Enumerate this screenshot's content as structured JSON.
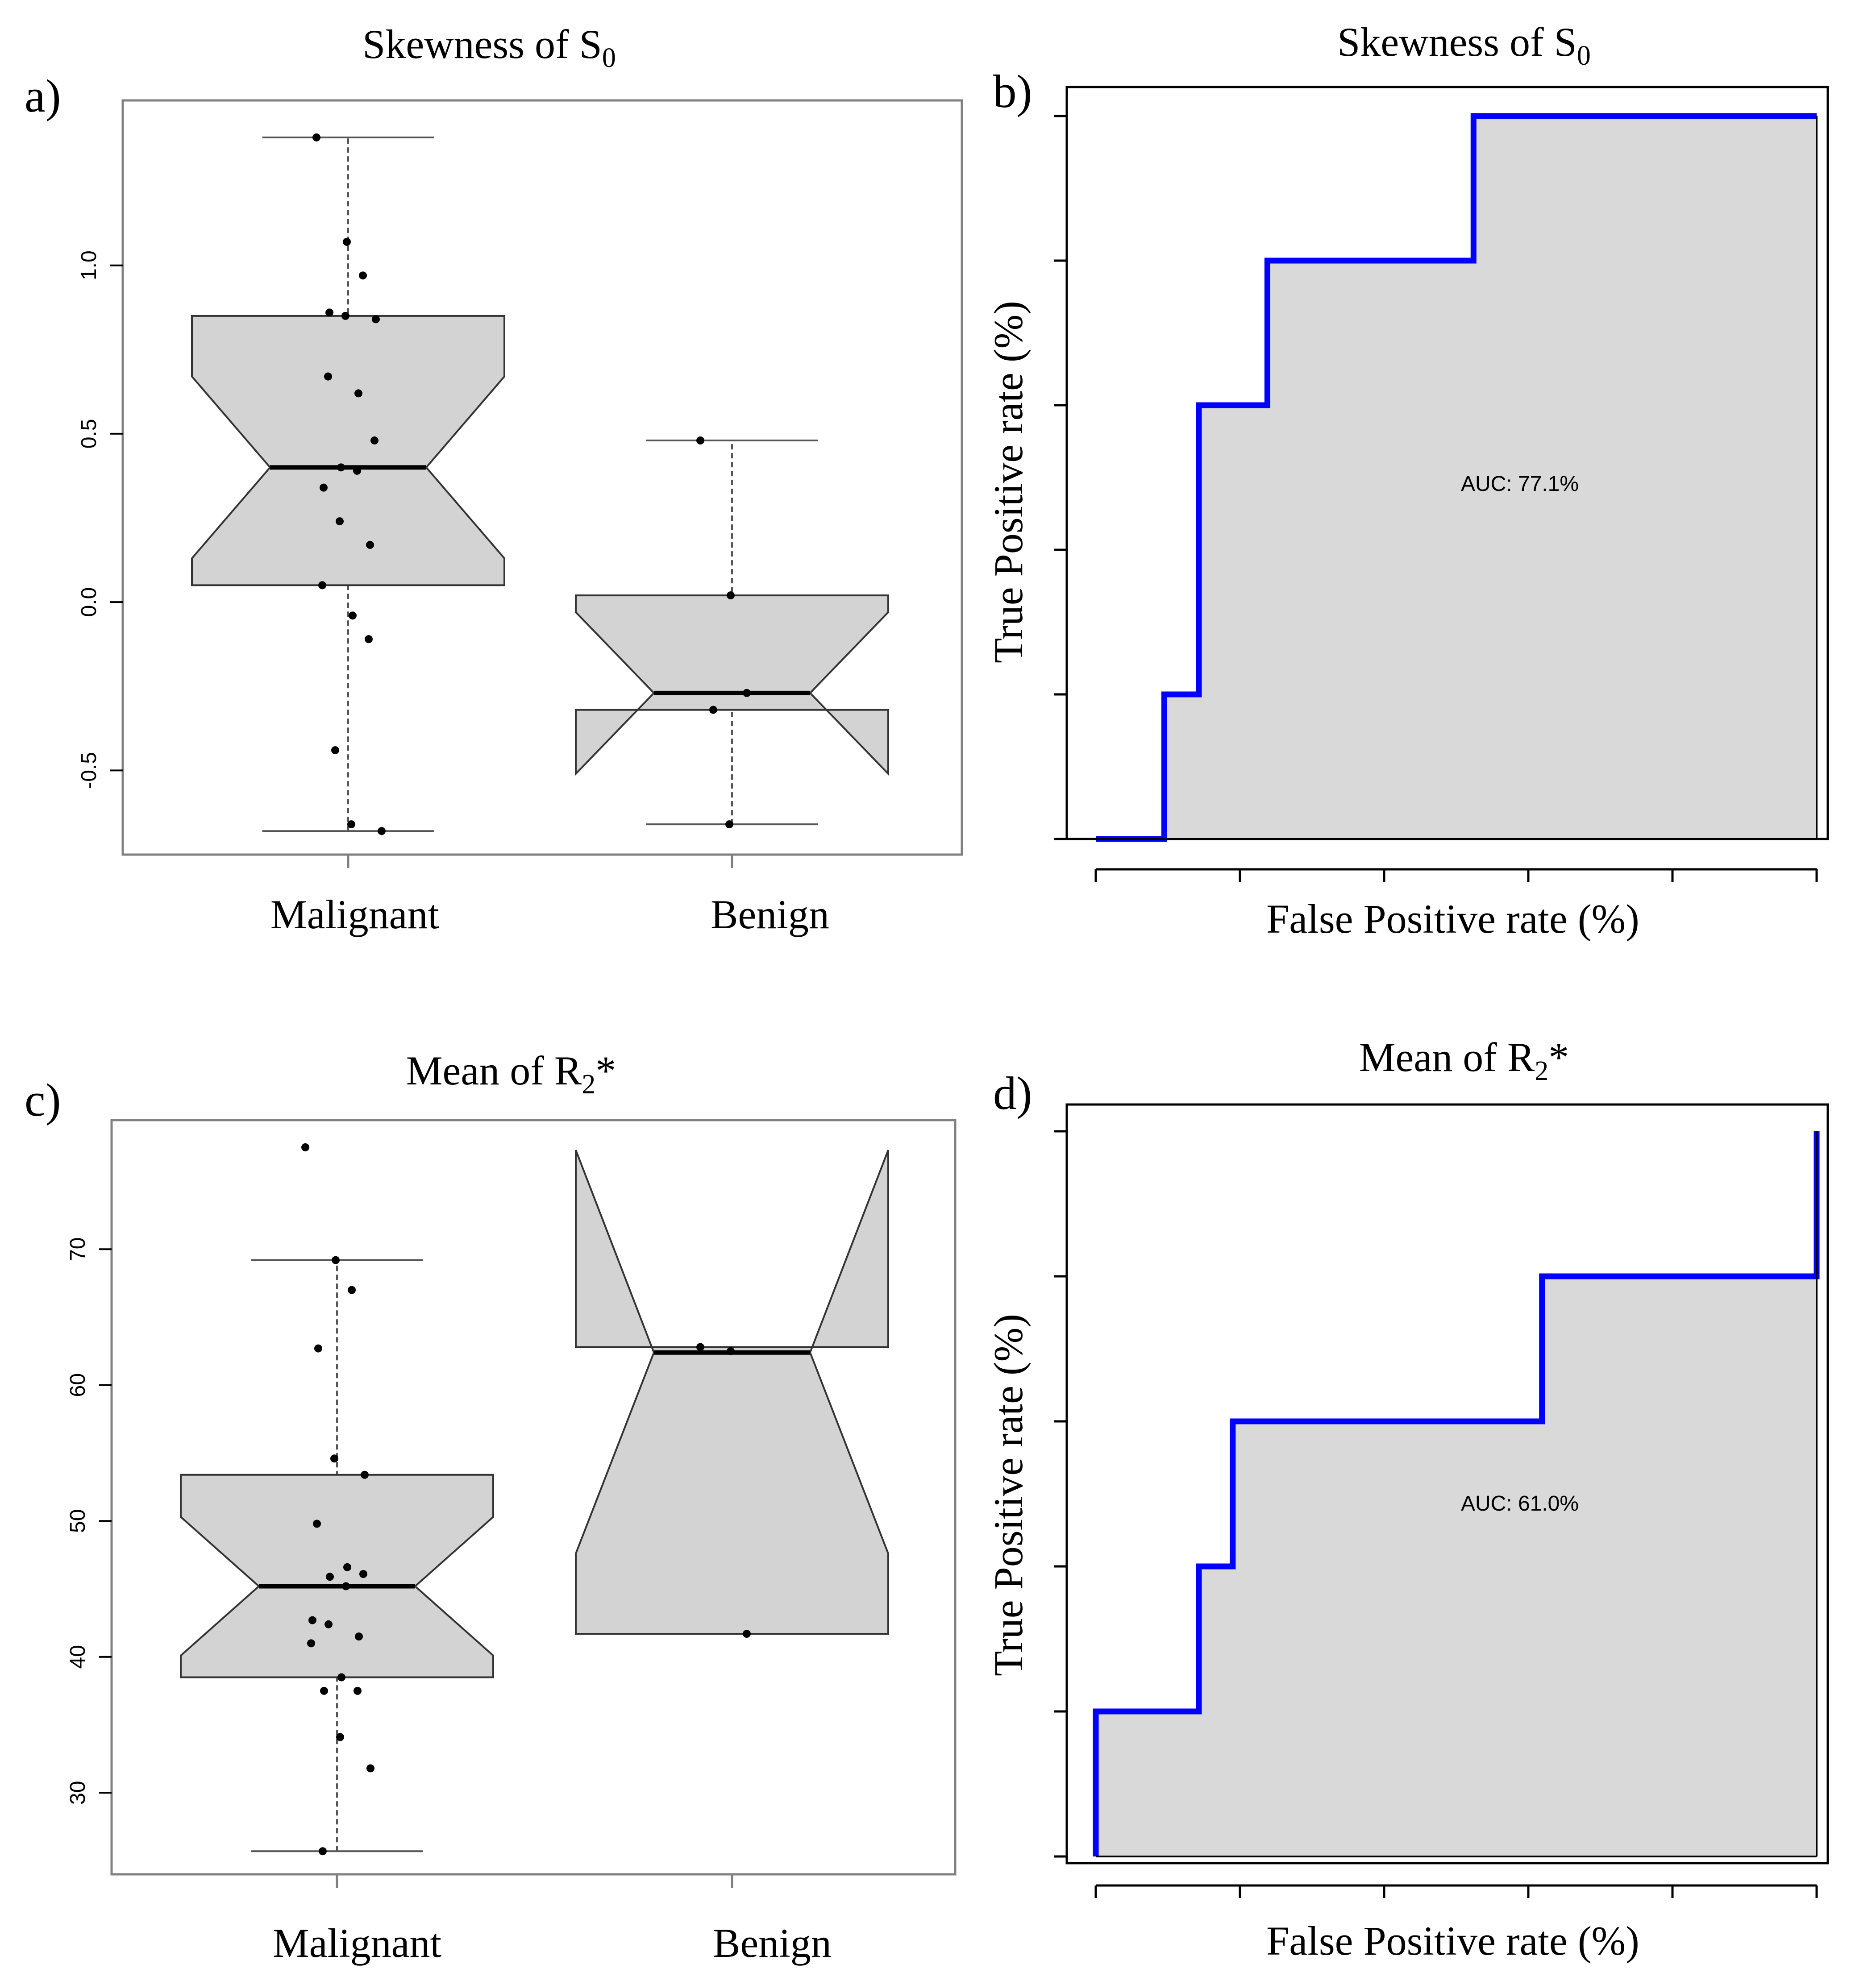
{
  "chart_data": [
    {
      "panel_label": "a)",
      "type": "boxplot",
      "title_text": "Skewness of S",
      "title_subscript": "0",
      "categories": [
        "Malignant",
        "Benign"
      ],
      "y_ticks": [
        "-0.5",
        "0.0",
        "0.5",
        "1.0"
      ],
      "y_tick_values": [
        -0.5,
        0.0,
        0.5,
        1.0
      ],
      "ylim": [
        -0.75,
        1.49
      ],
      "notch": true,
      "boxes": [
        {
          "category": "Malignant",
          "whisker_low": -0.68,
          "q1": 0.05,
          "median": 0.4,
          "q3": 0.85,
          "whisker_high": 1.38,
          "notch_low": 0.13,
          "notch_high": 0.67
        },
        {
          "category": "Benign",
          "whisker_low": -0.66,
          "q1": -0.32,
          "median": -0.27,
          "q3": 0.02,
          "whisker_high": 0.48,
          "notch_low": -0.51,
          "notch_high": -0.03
        }
      ],
      "points": [
        {
          "category": "Malignant",
          "y": [
            1.38,
            1.07,
            0.97,
            0.86,
            0.85,
            0.84,
            0.67,
            0.62,
            0.48,
            0.4,
            0.39,
            0.34,
            0.24,
            0.17,
            0.05,
            -0.04,
            -0.11,
            -0.44,
            -0.66,
            -0.68
          ]
        },
        {
          "category": "Benign",
          "y": [
            0.48,
            0.02,
            -0.27,
            -0.32,
            -0.66
          ]
        }
      ]
    },
    {
      "panel_label": "b)",
      "type": "roc",
      "title_text": "Skewness of S",
      "title_subscript": "0",
      "xlabel": "False Positive rate (%)",
      "ylabel": "True Positive rate (%)",
      "auc_label": "AUC: 77.1%",
      "x": [
        0,
        0.095,
        0.095,
        0.143,
        0.143,
        0.238,
        0.238,
        0.524,
        0.524,
        1.0
      ],
      "y": [
        0,
        0,
        0.2,
        0.2,
        0.6,
        0.6,
        0.8,
        0.8,
        1.0,
        1.0
      ],
      "line_color": "#0000ff",
      "fill_color": "#d9d9d9"
    },
    {
      "panel_label": "c)",
      "type": "boxplot",
      "title_text": "Mean of R",
      "title_subscript": "2",
      "title_suffix": "*",
      "categories": [
        "Malignant",
        "Benign"
      ],
      "y_ticks": [
        "30",
        "40",
        "50",
        "60",
        "70"
      ],
      "y_tick_values": [
        30,
        40,
        50,
        60,
        70
      ],
      "ylim": [
        24.0,
        79.5
      ],
      "notch": true,
      "boxes": [
        {
          "category": "Malignant",
          "whisker_low": 25.7,
          "q1": 38.5,
          "median": 45.2,
          "q3": 53.4,
          "whisker_high": 69.2,
          "notch_low": 40.1,
          "notch_high": 50.3
        },
        {
          "category": "Benign",
          "whisker_low": 41.7,
          "q1": 41.7,
          "median": 62.4,
          "q3": 62.8,
          "whisker_high": 62.8,
          "notch_low": 47.6,
          "notch_high": 77.3
        }
      ],
      "points": [
        {
          "category": "Malignant",
          "y": [
            77.5,
            69.2,
            67.0,
            62.7,
            54.6,
            53.4,
            49.8,
            46.6,
            46.1,
            45.9,
            45.2,
            42.7,
            42.4,
            41.5,
            41.0,
            38.5,
            37.5,
            37.5,
            34.1,
            31.8,
            25.7
          ]
        },
        {
          "category": "Benign",
          "y": [
            62.8,
            62.5,
            41.7
          ]
        }
      ]
    },
    {
      "panel_label": "d)",
      "type": "roc",
      "title_text": "Mean of R",
      "title_subscript": "2",
      "title_suffix": "*",
      "xlabel": "False Positive rate (%)",
      "ylabel": "True Positive rate (%)",
      "auc_label": "AUC: 61.0%",
      "x": [
        0,
        0,
        0.143,
        0.143,
        0.19,
        0.19,
        0.619,
        0.619,
        1.0,
        1.0
      ],
      "y": [
        0,
        0.2,
        0.2,
        0.4,
        0.4,
        0.6,
        0.6,
        0.8,
        0.8,
        1.0
      ],
      "line_color": "#0000ff",
      "fill_color": "#d9d9d9"
    }
  ]
}
